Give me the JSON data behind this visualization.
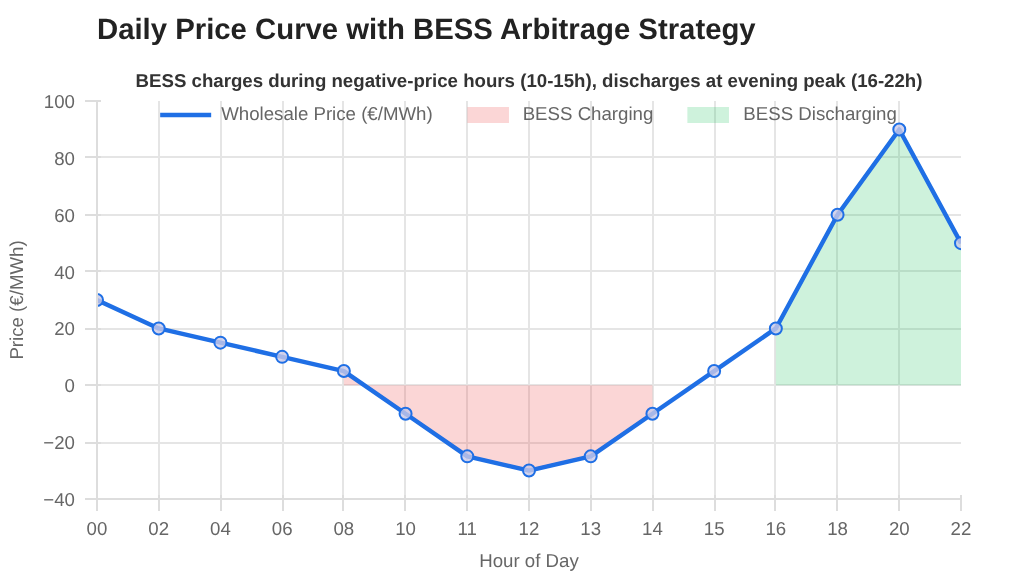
{
  "chart_data": {
    "type": "line",
    "title": "Daily Price Curve with BESS Arbitrage Strategy",
    "subtitle": "BESS charges during negative-price hours (10-15h), discharges at evening peak (16-22h)",
    "categories": [
      "00",
      "02",
      "04",
      "06",
      "08",
      "10",
      "11",
      "12",
      "13",
      "14",
      "15",
      "16",
      "18",
      "20",
      "22"
    ],
    "series": [
      {
        "name": "Wholesale Price (€/MWh)",
        "color": "#1f6fe5",
        "marker": "circle",
        "values": [
          30,
          20,
          15,
          10,
          5,
          -10,
          -25,
          -30,
          -25,
          -10,
          5,
          20,
          60,
          90,
          50
        ]
      },
      {
        "name": "BESS Charging",
        "color": "#ef4444",
        "type": "area",
        "marker": "none",
        "values": [
          null,
          null,
          null,
          null,
          5,
          -10,
          -25,
          -30,
          -25,
          -10,
          null,
          null,
          null,
          null,
          null
        ]
      },
      {
        "name": "BESS Discharging",
        "color": "#22c55e",
        "type": "area",
        "marker": "none",
        "values": [
          null,
          null,
          null,
          null,
          null,
          null,
          null,
          null,
          null,
          null,
          null,
          20,
          60,
          90,
          50
        ]
      }
    ],
    "xlabel": "Hour of Day",
    "ylabel": "Price (€/MWh)",
    "ylim": [
      -40,
      100
    ],
    "yticks": [
      -40,
      -20,
      0,
      20,
      40,
      60,
      80,
      100
    ],
    "grid": true,
    "legend": "top",
    "line_style": "solid"
  }
}
